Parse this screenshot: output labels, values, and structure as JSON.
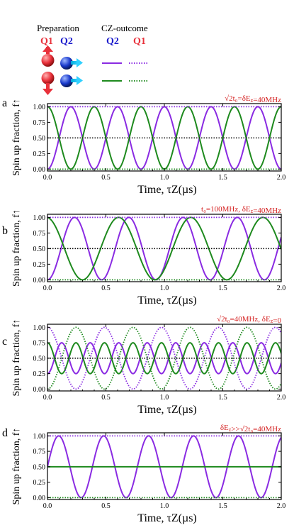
{
  "legend": {
    "preparation": "Preparation",
    "cz_outcome": "CZ-outcome",
    "q1": "Q1",
    "q2": "Q2",
    "q2_col": "Q2",
    "q1_col": "Q1",
    "colors": {
      "q1_red": "#e8303a",
      "q2_blue": "#1a1acc",
      "purple": "#8a2be2",
      "green": "#1e8a1e",
      "black": "#000000",
      "red_label": "#d42020"
    }
  },
  "chart_data": [
    {
      "type": "line",
      "panel": "a",
      "annotation": "√2t₀=δE_z=40MHz",
      "xlabel": "Time, τZ(µs)",
      "ylabel": "Spin up fraction, f↑",
      "xlim": [
        0,
        2.0
      ],
      "ylim": [
        -0.03,
        1.05
      ],
      "xticks": [
        "0.0",
        "0.5",
        "1.0",
        "1.5",
        "2.0"
      ],
      "yticks": [
        "0.00",
        "0.25",
        "0.50",
        "0.75",
        "1.00"
      ],
      "series": [
        {
          "style": "purple-solid",
          "model": "cos",
          "offset": 0.5,
          "amplitude": 0.5,
          "freq_MHz": 2.5,
          "phase": 0,
          "sign": -1
        },
        {
          "style": "green-solid",
          "model": "cos",
          "offset": 0.5,
          "amplitude": 0.5,
          "freq_MHz": 2.5,
          "phase": 0,
          "sign": 1
        },
        {
          "style": "purple-dotted",
          "model": "const",
          "value": 1.0
        },
        {
          "style": "green-dotted",
          "model": "const",
          "value": 0.0
        },
        {
          "style": "black-dotted",
          "model": "const",
          "value": 0.5
        }
      ]
    },
    {
      "type": "line",
      "panel": "b",
      "annotation": "t₀=100MHz, δE_z=40MHz",
      "xlabel": "Time, τZ(µs)",
      "ylabel": "Spin up fraction, f↑",
      "xlim": [
        0,
        2.0
      ],
      "ylim": [
        -0.03,
        1.05
      ],
      "xticks": [
        "0.0",
        "0.5",
        "1.0",
        "1.5",
        "2.0"
      ],
      "yticks": [
        "0.00",
        "0.25",
        "0.50",
        "0.75",
        "1.00"
      ],
      "series": [
        {
          "style": "purple-solid",
          "model": "cos",
          "offset": 0.5,
          "amplitude": 0.5,
          "freq_MHz": 2.155,
          "phase": 0,
          "sign": -1
        },
        {
          "style": "green-solid",
          "model": "cos",
          "offset": 0.5,
          "amplitude": 0.5,
          "freq_MHz": 1.62,
          "phase": 0,
          "sign": -1,
          "x_shift": 0.3
        },
        {
          "style": "purple-dotted",
          "model": "const",
          "value": 1.0
        },
        {
          "style": "green-dotted",
          "model": "const",
          "value": 0.0
        },
        {
          "style": "black-dotted",
          "model": "const",
          "value": 0.5
        }
      ]
    },
    {
      "type": "line",
      "panel": "c",
      "annotation": "√2t₀=40MHz, δE_z=0",
      "xlabel": "Time, τZ(µs)",
      "ylabel": "Spin up fraction, f↑",
      "xlim": [
        0,
        2.0
      ],
      "ylim": [
        -0.03,
        1.05
      ],
      "xticks": [
        "0.0",
        "0.5",
        "1.0",
        "1.5",
        "2.0"
      ],
      "yticks": [
        "0.00",
        "0.25",
        "0.50",
        "0.75",
        "1.00"
      ],
      "series": [
        {
          "style": "purple-solid",
          "model": "cos",
          "offset": 0.5,
          "amplitude": 0.25,
          "freq_MHz": 4.1,
          "phase": 0,
          "sign": -1
        },
        {
          "style": "green-solid",
          "model": "cos",
          "offset": 0.5,
          "amplitude": 0.25,
          "freq_MHz": 4.1,
          "phase": 0,
          "sign": 1
        },
        {
          "style": "purple-dotted",
          "model": "cos",
          "offset": 0.5,
          "amplitude": 0.5,
          "freq_MHz": 2.05,
          "phase": 0,
          "sign": 1
        },
        {
          "style": "green-dotted",
          "model": "cos",
          "offset": 0.5,
          "amplitude": 0.5,
          "freq_MHz": 2.05,
          "phase": 0,
          "sign": -1
        },
        {
          "style": "black-dotted",
          "model": "const",
          "value": 0.5
        }
      ]
    },
    {
      "type": "line",
      "panel": "d",
      "annotation": "δE_z>>√2t₀=40MHz",
      "xlabel": "Time, τZ(µs)",
      "ylabel": "Spin up fraction, f↑",
      "xlim": [
        0,
        2.0
      ],
      "ylim": [
        -0.03,
        1.05
      ],
      "xticks": [
        "0.0",
        "0.5",
        "1.0",
        "1.5",
        "2.0"
      ],
      "yticks": [
        "0.00",
        "0.25",
        "0.50",
        "0.75",
        "1.00"
      ],
      "series": [
        {
          "style": "purple-solid",
          "model": "sin",
          "offset": 0.5,
          "amplitude": 0.5,
          "freq_MHz": 2.6,
          "phase": 0,
          "sign": 1
        },
        {
          "style": "green-solid",
          "model": "const",
          "value": 0.5
        },
        {
          "style": "purple-dotted",
          "model": "const",
          "value": 1.0
        },
        {
          "style": "green-dotted",
          "model": "const",
          "value": 0.0
        }
      ]
    }
  ]
}
